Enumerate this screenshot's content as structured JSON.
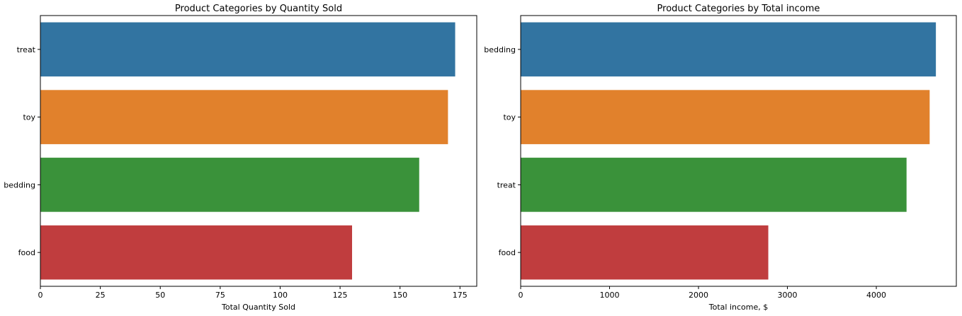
{
  "chart_data": [
    {
      "type": "bar",
      "orientation": "horizontal",
      "title": "Product Categories by Quantity Sold",
      "xlabel": "Total Quantity Sold",
      "ylabel": "",
      "categories": [
        "treat",
        "toy",
        "bedding",
        "food"
      ],
      "values": [
        173,
        170,
        158,
        130
      ],
      "colors": [
        "#3274a1",
        "#e1812c",
        "#3a923a",
        "#c03d3e"
      ],
      "xlim": [
        0,
        182
      ],
      "xticks": [
        0,
        25,
        50,
        75,
        100,
        125,
        150,
        175
      ],
      "grid": false,
      "legend": "none"
    },
    {
      "type": "bar",
      "orientation": "horizontal",
      "title": "Product Categories by Total income",
      "xlabel": "Total income, $",
      "ylabel": "",
      "categories": [
        "bedding",
        "toy",
        "treat",
        "food"
      ],
      "values": [
        4670,
        4600,
        4340,
        2785
      ],
      "colors": [
        "#3274a1",
        "#e1812c",
        "#3a923a",
        "#c03d3e"
      ],
      "xlim": [
        0,
        4900
      ],
      "xticks": [
        0,
        1000,
        2000,
        3000,
        4000
      ],
      "grid": false,
      "legend": "none"
    }
  ]
}
